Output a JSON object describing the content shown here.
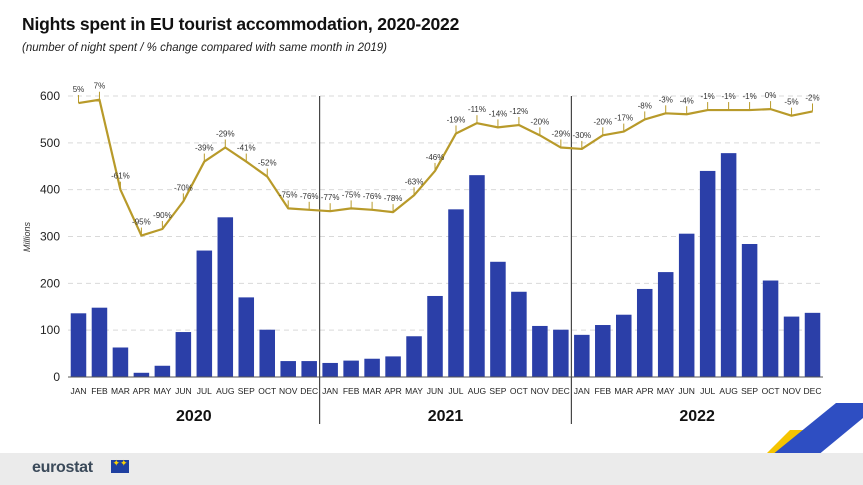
{
  "header": {
    "title": "Nights spent in EU tourist accommodation, 2020-2022",
    "subtitle": "(number of night spent / % change compared with same month in 2019)"
  },
  "footer": {
    "brand": "eurostat"
  },
  "colors": {
    "bar": "#2b3fa8",
    "line": "#b89a2a",
    "grid": "#d9d9d9",
    "divider": "#222222",
    "accent_yellow": "#f5c400",
    "accent_blue": "#2e4ec2"
  },
  "chart_data": {
    "type": "bar",
    "ylabel": "Millions",
    "ylim": [
      0,
      600
    ],
    "yticks": [
      0,
      100,
      200,
      300,
      400,
      500,
      600
    ],
    "grid": true,
    "categories": [
      "JAN",
      "FEB",
      "MAR",
      "APR",
      "MAY",
      "JUN",
      "JUL",
      "AUG",
      "SEP",
      "OCT",
      "NOV",
      "DEC",
      "JAN",
      "FEB",
      "MAR",
      "APR",
      "MAY",
      "JUN",
      "JUL",
      "AUG",
      "SEP",
      "OCT",
      "NOV",
      "DEC",
      "JAN",
      "FEB",
      "MAR",
      "APR",
      "MAY",
      "JUN",
      "JUL",
      "AUG",
      "SEP",
      "OCT",
      "NOV",
      "DEC"
    ],
    "years": [
      "2020",
      "2021",
      "2022"
    ],
    "series": [
      {
        "type": "bar",
        "values": [
          136,
          148,
          63,
          9,
          24,
          96,
          270,
          341,
          170,
          101,
          34,
          34,
          30,
          35,
          39,
          44,
          87,
          173,
          358,
          431,
          246,
          182,
          109,
          101,
          90,
          111,
          133,
          188,
          224,
          306,
          440,
          478,
          284,
          206,
          129,
          137
        ]
      },
      {
        "type": "line",
        "values": [
          585,
          592,
          400,
          302,
          316,
          375,
          460,
          490,
          460,
          428,
          360,
          357,
          354,
          360,
          357,
          352,
          388,
          440,
          520,
          542,
          533,
          538,
          516,
          490,
          487,
          516,
          524,
          550,
          563,
          561,
          570,
          570,
          570,
          572,
          558,
          567
        ],
        "labels": [
          "5%",
          "7%",
          "-61%",
          "-95%",
          "-90%",
          "-70%",
          "-39%",
          "-29%",
          "-41%",
          "-52%",
          "-75%",
          "-76%",
          "-77%",
          "-75%",
          "-76%",
          "-78%",
          "-63%",
          "-46%",
          "-19%",
          "-11%",
          "-14%",
          "-12%",
          "-20%",
          "-29%",
          "-30%",
          "-20%",
          "-17%",
          "-8%",
          "-3%",
          "-4%",
          "-1%",
          "-1%",
          "-1%",
          "0%",
          "-5%",
          "-2%"
        ]
      }
    ]
  }
}
